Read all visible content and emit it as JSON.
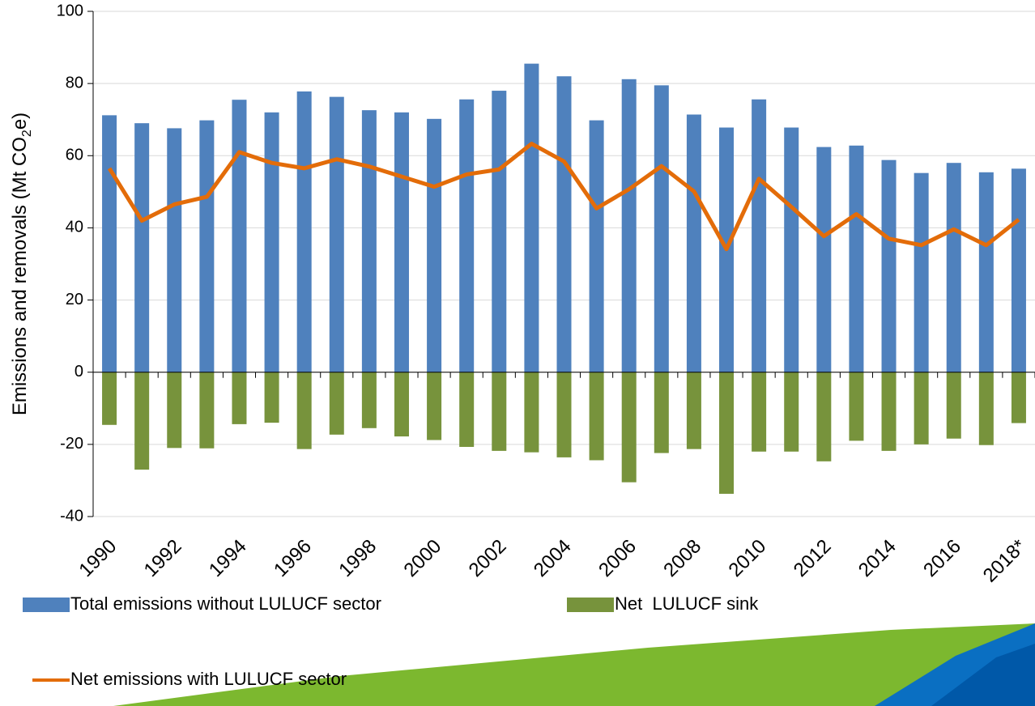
{
  "chart_data": {
    "type": "bar",
    "y_label": {
      "text": "Emissions and removals (Mt CO",
      "sub": "2",
      "end": "e)"
    },
    "categories": [
      "1990",
      null,
      "1992",
      null,
      "1994",
      null,
      "1996",
      null,
      "1998",
      null,
      "2000",
      null,
      "2002",
      null,
      "2004",
      null,
      "2006",
      null,
      "2008",
      null,
      "2010",
      null,
      "2012",
      null,
      "2014",
      null,
      "2016",
      null,
      "2018*"
    ],
    "series": [
      {
        "name": "Total emissions without LULUCF sector",
        "type": "bar",
        "color": "#4f81bd",
        "values": [
          71.2,
          69,
          67.6,
          69.8,
          75.5,
          72,
          77.8,
          76.3,
          72.6,
          72,
          70.2,
          75.6,
          78,
          85.5,
          82,
          69.8,
          81.2,
          79.5,
          71.4,
          67.8,
          75.6,
          67.8,
          62.4,
          62.8,
          58.8,
          55.2,
          58,
          55.4,
          56.4
        ]
      },
      {
        "name": "Net  LULUCF sink",
        "type": "bar",
        "color": "#77933c",
        "values": [
          -14.6,
          -27,
          -21,
          -21.1,
          -14.4,
          -14,
          -21.3,
          -17.3,
          -15.5,
          -17.8,
          -18.8,
          -20.7,
          -21.8,
          -22.2,
          -23.6,
          -24.4,
          -30.5,
          -22.4,
          -21.3,
          -33.7,
          -22,
          -22,
          -24.7,
          -19,
          -21.8,
          -20,
          -18.4,
          -20.2,
          -14.1
        ]
      },
      {
        "name": "Net emissions with LULUCF sector",
        "type": "line",
        "color": "#e36c09",
        "values": [
          56.5,
          42,
          46.5,
          48.6,
          61,
          58,
          56.5,
          59,
          57,
          54.2,
          51.4,
          54.8,
          56.2,
          63.3,
          58.4,
          45.4,
          50.7,
          57.1,
          50.1,
          34.1,
          53.6,
          45.8,
          37.7,
          43.8,
          37,
          35.2,
          39.6,
          35.2,
          42.3
        ]
      }
    ],
    "ylim": [
      -40,
      100
    ],
    "yticks": [
      -40,
      -20,
      0,
      20,
      40,
      60,
      80,
      100
    ],
    "grid": true,
    "legend": "bottom"
  }
}
